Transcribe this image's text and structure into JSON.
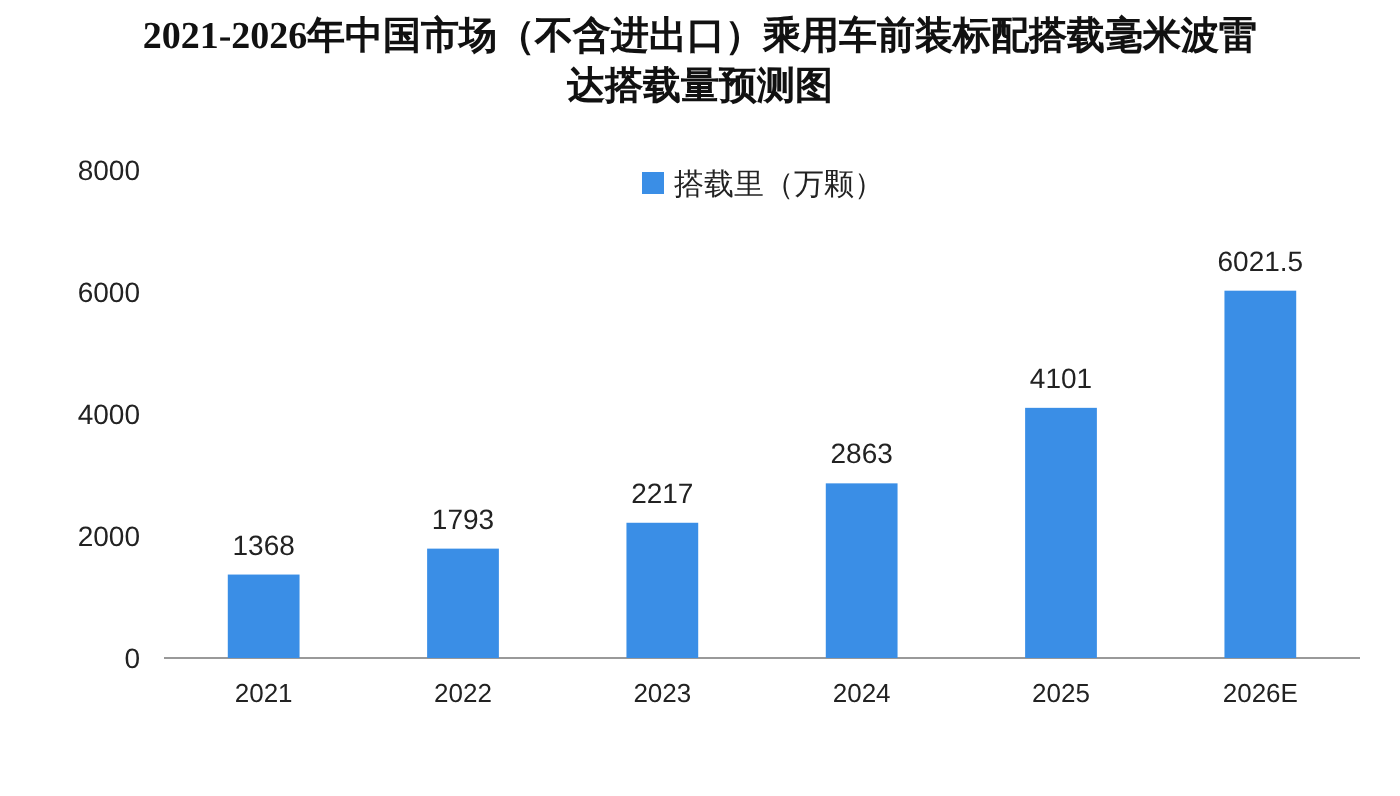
{
  "chart_data": {
    "type": "bar",
    "title": "2021-2026年中国市场（不含进出口）乘用车前装标配搭载毫米波雷达搭载量预测图",
    "categories": [
      "2021",
      "2022",
      "2023",
      "2024",
      "2025",
      "2026E"
    ],
    "series": [
      {
        "name": "搭载里（万颗）",
        "color": "#3a8ee6",
        "values": [
          1368,
          1793,
          2217,
          2863,
          4101,
          6021.5
        ]
      }
    ],
    "ylim": [
      0,
      8000
    ],
    "yticks": [
      0,
      2000,
      4000,
      6000,
      8000
    ],
    "data_labels": true,
    "legend": "top",
    "grid": false
  }
}
